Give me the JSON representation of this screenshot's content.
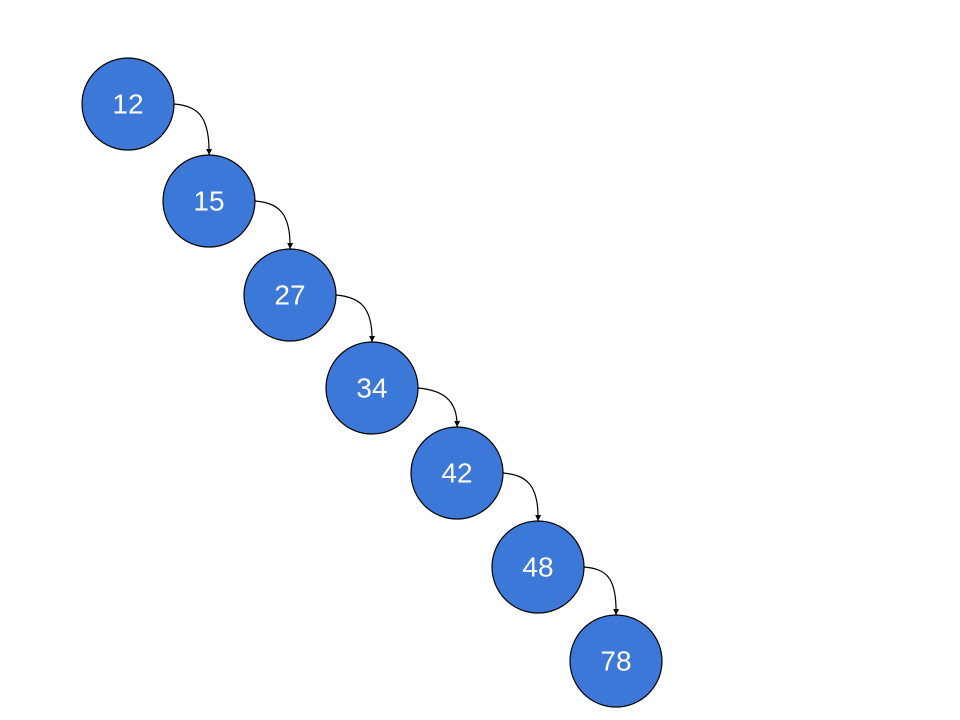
{
  "diagram": {
    "type": "linked-chain",
    "node_fill": "#3c78d8",
    "node_stroke": "#000000",
    "edge_color": "#000000",
    "nodes": [
      {
        "id": "n12",
        "label": "12"
      },
      {
        "id": "n15",
        "label": "15"
      },
      {
        "id": "n27",
        "label": "27"
      },
      {
        "id": "n34",
        "label": "34"
      },
      {
        "id": "n42",
        "label": "42"
      },
      {
        "id": "n48",
        "label": "48"
      },
      {
        "id": "n78",
        "label": "78"
      }
    ],
    "edges": [
      {
        "from": "n12",
        "to": "n15"
      },
      {
        "from": "n15",
        "to": "n27"
      },
      {
        "from": "n27",
        "to": "n34"
      },
      {
        "from": "n34",
        "to": "n42"
      },
      {
        "from": "n42",
        "to": "n48"
      },
      {
        "from": "n48",
        "to": "n78"
      }
    ]
  }
}
